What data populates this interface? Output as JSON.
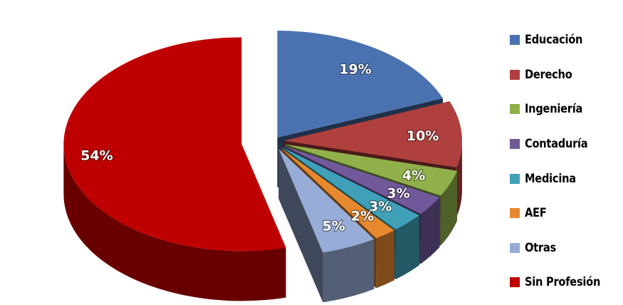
{
  "chart_data": {
    "type": "pie",
    "title": "",
    "legend_position": "right",
    "slices": [
      {
        "name": "Educación",
        "value": 19,
        "label": "19%",
        "color": "#4a72b0"
      },
      {
        "name": "Derecho",
        "value": 10,
        "label": "10%",
        "color": "#b0403d"
      },
      {
        "name": "Ingeniería",
        "value": 4,
        "label": "4%",
        "color": "#8fb04a"
      },
      {
        "name": "Contaduría",
        "value": 3,
        "label": "3%",
        "color": "#71589a"
      },
      {
        "name": "Medicina",
        "value": 3,
        "label": "3%",
        "color": "#3fa0b8"
      },
      {
        "name": "AEF",
        "value": 2,
        "label": "2%",
        "color": "#e6892f"
      },
      {
        "name": "Otras",
        "value": 5,
        "label": "5%",
        "color": "#97acd6"
      },
      {
        "name": "Sin Profesión",
        "value": 54,
        "label": "54%",
        "color": "#bf0000"
      }
    ]
  }
}
